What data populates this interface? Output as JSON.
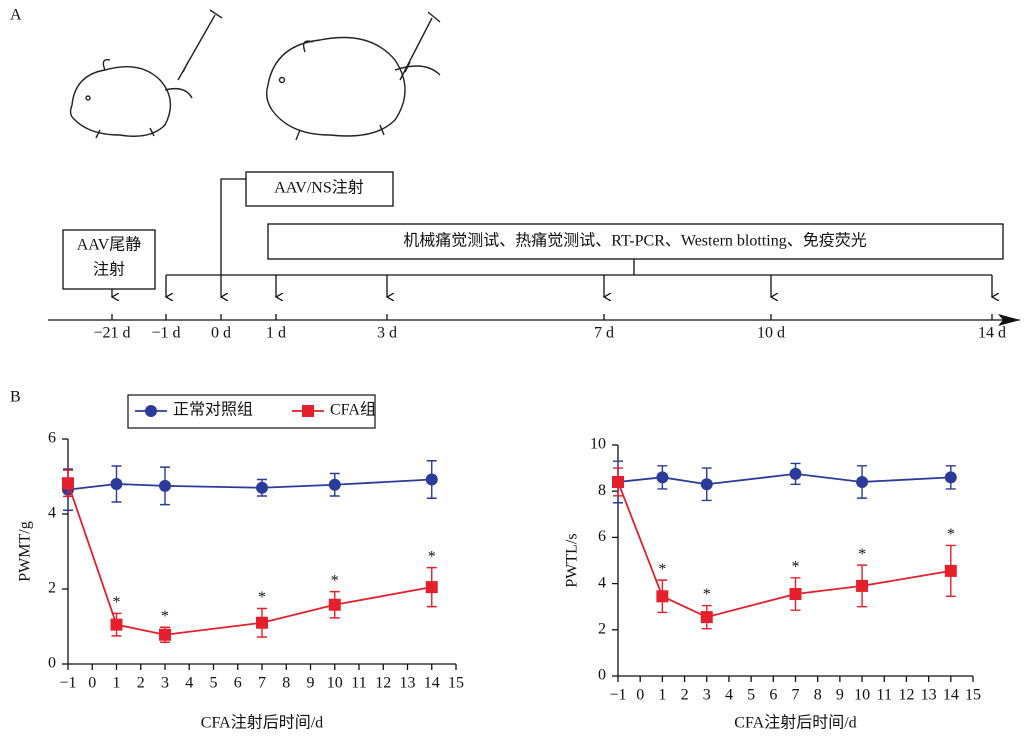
{
  "panel_a": {
    "label": "A",
    "boxes": [
      "AAV尾静",
      "注射",
      "AAV/NS注射",
      "机械痛觉测试、热痛觉测试、RT-PCR、Western blotting、免疫荧光"
    ],
    "timeline": [
      "−21 d",
      "−1 d",
      "0 d",
      "1 d",
      "3 d",
      "7 d",
      "10 d",
      "14 d"
    ]
  },
  "panel_b": {
    "label": "B"
  },
  "chart_data": [
    {
      "type": "line",
      "ylabel": "PWMT/g",
      "xlabel": "CFA注射后时间/d",
      "xlim": [
        -1,
        15
      ],
      "ylim": [
        0,
        6
      ],
      "xticks": [
        {
          "value": -1,
          "label": "−1"
        },
        0,
        1,
        2,
        3,
        4,
        5,
        6,
        7,
        8,
        9,
        10,
        11,
        12,
        13,
        14,
        15
      ],
      "yticks": [
        0,
        2,
        4,
        6
      ],
      "x": [
        -1,
        1,
        3,
        7,
        10,
        14
      ],
      "legend": "top-left",
      "series": [
        {
          "name": "正常对照组",
          "color": "#2b3b9a",
          "marker": "circle",
          "values": [
            4.65,
            4.8,
            4.75,
            4.7,
            4.78,
            4.92
          ],
          "errors": [
            0.55,
            0.48,
            0.5,
            0.22,
            0.3,
            0.5
          ]
        },
        {
          "name": "CFA组",
          "color": "#e3202b",
          "marker": "square",
          "values": [
            4.82,
            1.05,
            0.78,
            1.1,
            1.58,
            2.05
          ],
          "errors": [
            0.35,
            0.3,
            0.2,
            0.38,
            0.35,
            0.52
          ],
          "significance": [
            null,
            "*",
            "*",
            "*",
            "*",
            "*"
          ]
        }
      ]
    },
    {
      "type": "line",
      "ylabel": "PWTL/s",
      "xlabel": "CFA注射后时间/d",
      "xlim": [
        -1,
        15
      ],
      "ylim": [
        0,
        10
      ],
      "xticks": [
        {
          "value": -1,
          "label": "−1"
        },
        0,
        1,
        2,
        3,
        4,
        5,
        6,
        7,
        8,
        9,
        10,
        11,
        12,
        13,
        14,
        15
      ],
      "yticks": [
        0,
        2,
        4,
        6,
        8,
        10
      ],
      "x": [
        -1,
        1,
        3,
        7,
        10,
        14
      ],
      "series": [
        {
          "color": "#2b3b9a",
          "marker": "circle",
          "values": [
            8.4,
            8.6,
            8.3,
            8.75,
            8.4,
            8.6
          ],
          "errors": [
            0.9,
            0.5,
            0.7,
            0.45,
            0.7,
            0.5
          ]
        },
        {
          "color": "#e3202b",
          "marker": "square",
          "values": [
            8.4,
            3.45,
            2.55,
            3.55,
            3.9,
            4.55
          ],
          "errors": [
            0.6,
            0.7,
            0.5,
            0.7,
            0.9,
            1.1
          ],
          "significance": [
            null,
            "*",
            "*",
            "*",
            "*",
            "*"
          ]
        }
      ]
    }
  ]
}
